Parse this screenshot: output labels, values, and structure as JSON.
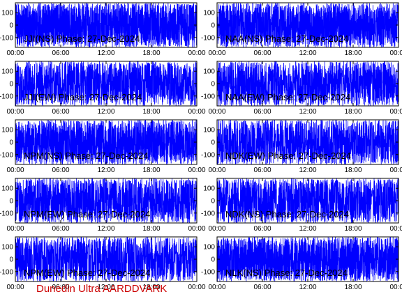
{
  "figure": {
    "footer": "Dunedin Ultra AARDDVARK",
    "colors": {
      "trace": "#0000ff",
      "axes": "#000000",
      "footer": "#cc0000",
      "background": "#ffffff"
    }
  },
  "chart_data": [
    {
      "type": "line",
      "title": "JJI(NS) Phase: 27-Dec-2024",
      "x_ticks": [
        "00:00",
        "06:00",
        "12:00",
        "18:00",
        "00:00"
      ],
      "y_ticks": [
        "100",
        "0",
        "-100"
      ],
      "ylim": [
        -180,
        180
      ],
      "trace_level": 0.98
    },
    {
      "type": "line",
      "title": "NAA(NS) Phase: 27-Dec-2024",
      "x_ticks": [
        "00:00",
        "06:00",
        "12:00",
        "18:00",
        "00:00"
      ],
      "y_ticks": [
        "100",
        "0",
        "-100"
      ],
      "ylim": [
        -180,
        180
      ],
      "trace_level": 0.98
    },
    {
      "type": "line",
      "title": "JJI(EW) Phase: 27-Dec-2024",
      "x_ticks": [
        "00:00",
        "06:00",
        "12:00",
        "18:00",
        "00:00"
      ],
      "y_ticks": [
        "100",
        "0",
        "-100"
      ],
      "ylim": [
        -180,
        180
      ],
      "trace_level": 0.75
    },
    {
      "type": "line",
      "title": "NAA(EW) Phase: 27-Dec-2024",
      "x_ticks": [
        "00:00",
        "06:00",
        "12:00",
        "18:00",
        "00:00"
      ],
      "y_ticks": [
        "100",
        "0",
        "-100"
      ],
      "ylim": [
        -180,
        180
      ],
      "trace_level": 0.72
    },
    {
      "type": "line",
      "title": "NPM(NS) Phase: 27-Dec-2024",
      "x_ticks": [
        "00:00",
        "06:00",
        "12:00",
        "18:00",
        "00:00"
      ],
      "y_ticks": [
        "100",
        "0",
        "-100"
      ],
      "ylim": [
        -180,
        180
      ],
      "trace_level": 0.99
    },
    {
      "type": "line",
      "title": "NDK(EW) Phase: 27-Dec-2024",
      "x_ticks": [
        "00:00",
        "06:00",
        "12:00",
        "18:00",
        "00:00"
      ],
      "y_ticks": [
        "100",
        "0",
        "-100"
      ],
      "ylim": [
        -180,
        180
      ],
      "trace_level": 0.7
    },
    {
      "type": "line",
      "title": "NPM(EW) Phase: 27-Dec-2024",
      "x_ticks": [
        "00:00",
        "06:00",
        "12:00",
        "18:00",
        "00:00"
      ],
      "y_ticks": [
        "100",
        "0",
        "-100"
      ],
      "ylim": [
        -180,
        180
      ],
      "trace_level": 0.72
    },
    {
      "type": "line",
      "title": "NDK(NS) Phase: 27-Dec-2024",
      "x_ticks": [
        "00:00",
        "06:00",
        "12:00",
        "18:00",
        "00:00"
      ],
      "y_ticks": [
        "100",
        "0",
        "-100"
      ],
      "ylim": [
        -180,
        180
      ],
      "trace_level": 0.7
    },
    {
      "type": "line",
      "title": "NPM(EW) Phase: 27-Dec-2024",
      "x_ticks": [
        "00:00",
        "06:00",
        "12:00",
        "18:00",
        "00:00"
      ],
      "y_ticks": [
        "100",
        "0",
        "-100"
      ],
      "ylim": [
        -180,
        180
      ],
      "trace_level": 0.7
    },
    {
      "type": "line",
      "title": "NLK(NS) Phase: 27-Dec-2024",
      "x_ticks": [
        "00:00",
        "06:00",
        "12:00",
        "18:00",
        "00:00"
      ],
      "y_ticks": [
        "100",
        "0",
        "-100"
      ],
      "ylim": [
        -180,
        180
      ],
      "trace_level": 0.99
    }
  ]
}
